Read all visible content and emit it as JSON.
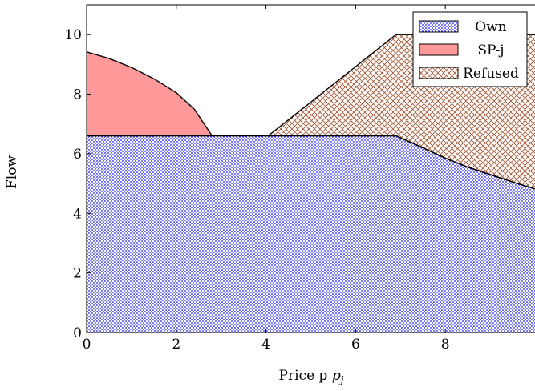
{
  "chart_data": {
    "type": "area",
    "title": "",
    "xlabel": "Price p",
    "xlabel_subscript": "j",
    "ylabel": "Flow",
    "xlim": [
      0,
      10
    ],
    "ylim": [
      0,
      11
    ],
    "xticks": [
      0,
      2,
      4,
      6,
      8
    ],
    "yticks": [
      0,
      2,
      4,
      6,
      8,
      10
    ],
    "grid": false,
    "legend_position": "top-right",
    "series": [
      {
        "name": "Own",
        "color": "#1a1aff",
        "pattern": "dots",
        "points": [
          [
            0,
            6.6
          ],
          [
            6.9,
            6.6
          ],
          [
            7.5,
            6.2
          ],
          [
            8.0,
            5.85
          ],
          [
            8.5,
            5.55
          ],
          [
            9.0,
            5.3
          ],
          [
            9.5,
            5.05
          ],
          [
            10.0,
            4.82
          ]
        ]
      },
      {
        "name": "SP-j",
        "color": "#ff9999",
        "pattern": "solid",
        "points": [
          [
            0,
            9.42
          ],
          [
            0.5,
            9.2
          ],
          [
            1.0,
            8.9
          ],
          [
            1.5,
            8.52
          ],
          [
            2.0,
            8.05
          ],
          [
            2.4,
            7.5
          ],
          [
            2.8,
            6.6
          ]
        ]
      },
      {
        "name": "Refused",
        "color": "#a0522d",
        "pattern": "crosshatch",
        "points": [
          [
            4.05,
            6.6
          ],
          [
            6.9,
            10.0
          ],
          [
            10.0,
            10.0
          ]
        ]
      }
    ]
  }
}
